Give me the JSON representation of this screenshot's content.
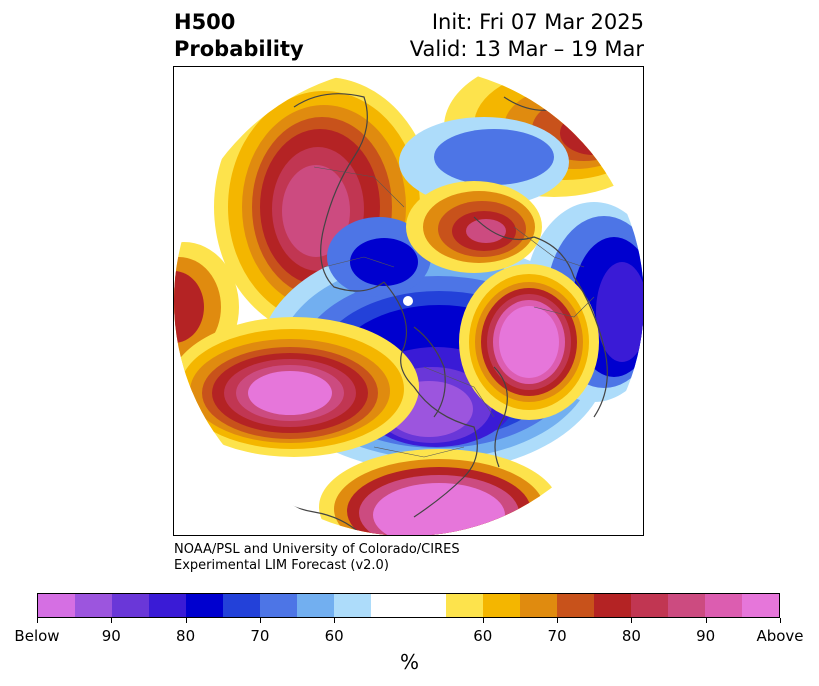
{
  "title": {
    "line1": "H500",
    "line2": "Probability",
    "init": "Init: Fri 07 Mar 2025",
    "valid": "Valid: 13 Mar – 19 Mar"
  },
  "credit": {
    "line1": "NOAA/PSL and University of Colorado/CIRES",
    "line2": "Experimental LIM Forecast (v2.0)"
  },
  "colorbar": {
    "unit": "%",
    "below_colors": [
      "#d56fe3",
      "#9c55de",
      "#6a37d8",
      "#3a1bd6",
      "#0000cf",
      "#2341d9",
      "#4d75e6",
      "#72aff0",
      "#addcfa"
    ],
    "neutral_color": "#ffffff",
    "above_colors": [
      "#fde34c",
      "#f4b600",
      "#e08b0f",
      "#c8521b",
      "#b42324",
      "#c13652",
      "#cc4b80",
      "#dc5db0",
      "#e676da"
    ],
    "tick_labels": [
      "Below",
      "90",
      "80",
      "70",
      "60",
      "60",
      "70",
      "80",
      "90",
      "Above"
    ]
  },
  "map": {
    "projection": "north-polar-stereographic",
    "legend_meaning": "probability of 500 hPa height anomaly below/above normal"
  }
}
